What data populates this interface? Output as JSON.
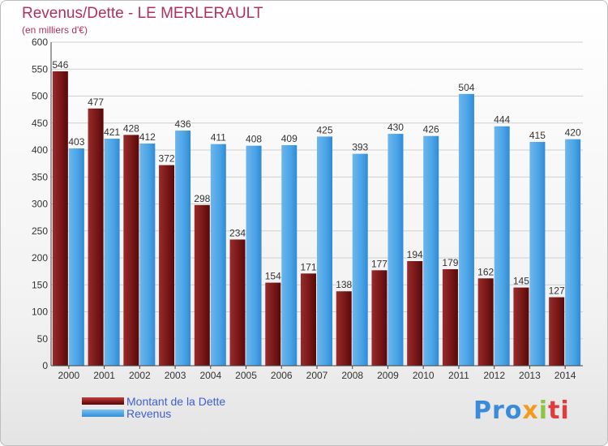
{
  "title": "Revenus/Dette - LE MERLERAULT",
  "subtitle": "(en milliers d'€)",
  "legend": {
    "debt_label": "Montant de la Dette",
    "revenue_label": "Revenus"
  },
  "logo_text": "Proxiti",
  "colors": {
    "debt_top": "#c04040",
    "debt_bottom": "#5a0000",
    "revenue_top": "#7cc0f0",
    "revenue_bottom": "#2f8fd8",
    "title": "#b03060",
    "legend_text": "#4060d0"
  },
  "chart_data": {
    "type": "bar",
    "title": "Revenus/Dette - LE MERLERAULT",
    "subtitle": "(en milliers d'€)",
    "categories": [
      "2000",
      "2001",
      "2002",
      "2003",
      "2004",
      "2005",
      "2006",
      "2007",
      "2008",
      "2009",
      "2010",
      "2011",
      "2012",
      "2013",
      "2014"
    ],
    "series": [
      {
        "name": "Montant de la Dette",
        "values": [
          546,
          477,
          428,
          372,
          298,
          234,
          154,
          171,
          138,
          177,
          194,
          179,
          162,
          145,
          127
        ]
      },
      {
        "name": "Revenus",
        "values": [
          403,
          421,
          412,
          436,
          411,
          408,
          409,
          425,
          393,
          430,
          426,
          504,
          444,
          415,
          420
        ]
      }
    ],
    "ylim": [
      0,
      600
    ],
    "yticks": [
      0,
      50,
      100,
      150,
      200,
      250,
      300,
      350,
      400,
      450,
      500,
      550,
      600
    ],
    "grid": true,
    "legend_position": "bottom-left"
  }
}
